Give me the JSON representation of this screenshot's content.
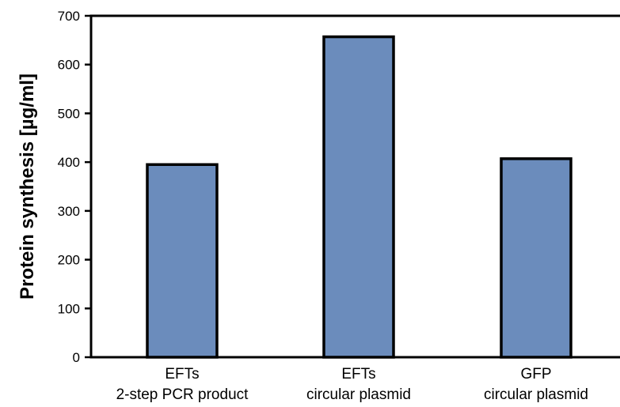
{
  "chart_data": {
    "type": "bar",
    "title": "",
    "xlabel": "",
    "ylabel": "Protein synthesis [µg/ml]",
    "ylim": [
      0,
      700
    ],
    "yticks": [
      "0",
      "100",
      "200",
      "300",
      "400",
      "500",
      "600",
      "700"
    ],
    "grid": false,
    "legend": "none",
    "categories": [
      {
        "line1": "EFTs",
        "line2": "2-step PCR product"
      },
      {
        "line1": "EFTs",
        "line2": "circular plasmid"
      },
      {
        "line1": "GFP",
        "line2": "circular plasmid"
      }
    ],
    "values": [
      395,
      657,
      407
    ],
    "colors": {
      "bar_fill": "#6b8cbc",
      "bar_stroke": "#000000",
      "axis": "#000000",
      "text": "#000000"
    }
  }
}
